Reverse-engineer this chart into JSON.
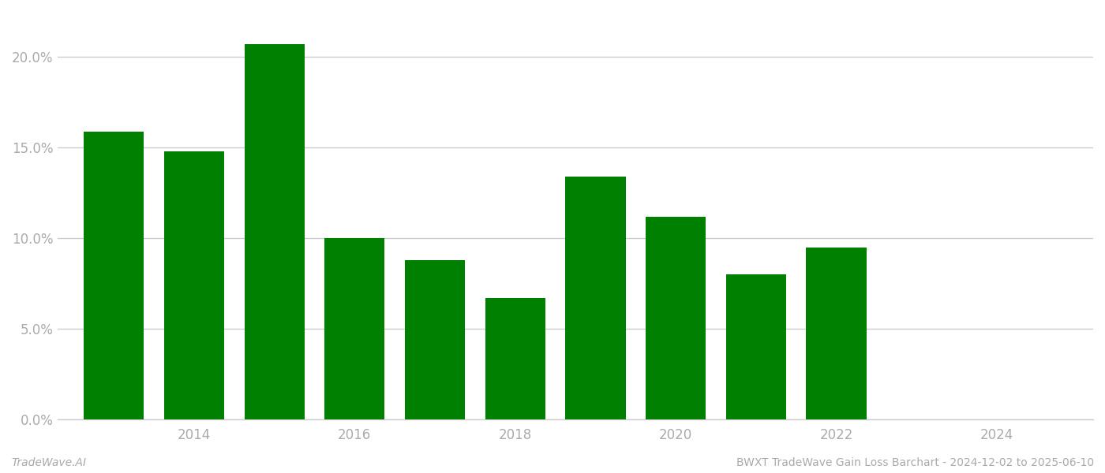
{
  "bar_positions": [
    2013,
    2014,
    2015,
    2016,
    2017,
    2018,
    2019,
    2020,
    2021,
    2022,
    2023
  ],
  "bar_values": [
    0.159,
    0.148,
    0.207,
    0.1,
    0.088,
    0.067,
    0.134,
    0.112,
    0.08,
    0.095,
    0.0
  ],
  "bar_color": "#008000",
  "background_color": "#ffffff",
  "tick_label_color": "#aaaaaa",
  "grid_color": "#cccccc",
  "footer_left": "TradeWave.AI",
  "footer_right": "BWXT TradeWave Gain Loss Barchart - 2024-12-02 to 2025-06-10",
  "footer_color": "#aaaaaa",
  "ylim": [
    0,
    0.225
  ],
  "yticks": [
    0.0,
    0.05,
    0.1,
    0.15,
    0.2
  ],
  "xtick_positions": [
    2014,
    2016,
    2018,
    2020,
    2022,
    2024
  ],
  "xlim": [
    2012.3,
    2025.2
  ],
  "bar_width": 0.75
}
